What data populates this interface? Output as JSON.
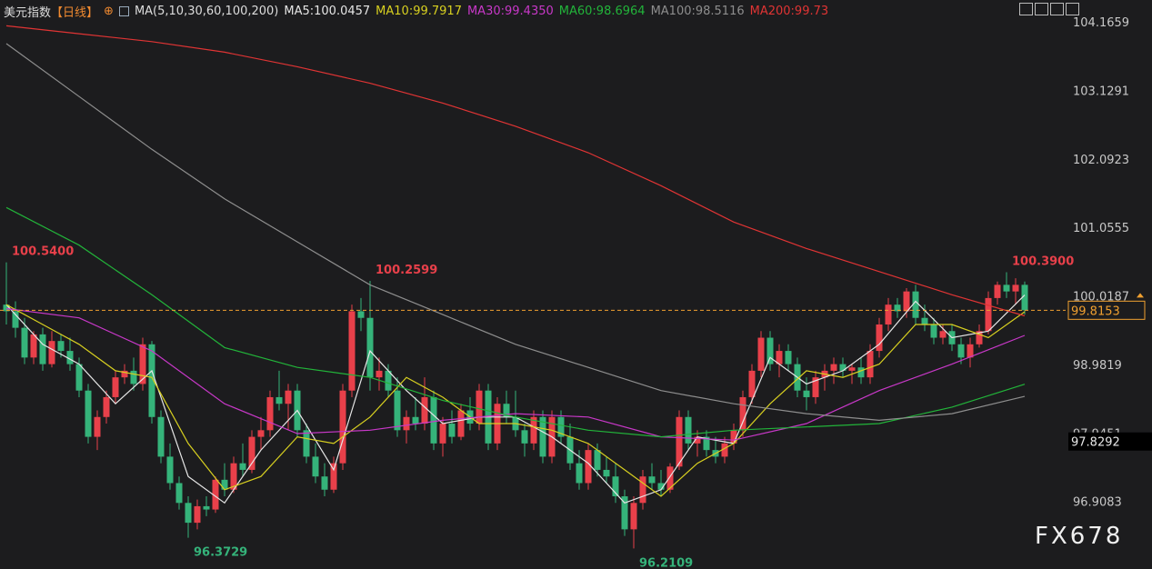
{
  "chart_data": {
    "type": "candlestick",
    "title": "美元指数",
    "period": "【日线】",
    "indicator": "MA(5,10,30,60,100,200)",
    "watermark": "FX678",
    "up_color": "#e8404a",
    "down_color": "#35b37a",
    "ylim": [
      95.9,
      104.51
    ],
    "yticks": [
      104.1659,
      103.1291,
      102.0923,
      101.0555,
      100.0187,
      98.9819,
      97.9451,
      96.9083
    ],
    "grid": false,
    "current_price": 99.8153,
    "current_color": "#f0a030",
    "marker_price": 97.8292,
    "candles": [
      [
        99.9,
        100.54,
        99.6,
        99.8
      ],
      [
        99.8,
        99.95,
        99.4,
        99.55
      ],
      [
        99.55,
        99.7,
        99.0,
        99.1
      ],
      [
        99.1,
        99.5,
        99.0,
        99.45
      ],
      [
        99.45,
        99.55,
        98.9,
        99.0
      ],
      [
        99.0,
        99.5,
        98.95,
        99.35
      ],
      [
        99.35,
        99.45,
        99.1,
        99.2
      ],
      [
        99.2,
        99.4,
        98.9,
        99.0
      ],
      [
        99.0,
        99.1,
        98.5,
        98.6
      ],
      [
        98.6,
        98.7,
        97.8,
        97.9
      ],
      [
        97.9,
        98.3,
        97.7,
        98.2
      ],
      [
        98.2,
        98.6,
        98.1,
        98.5
      ],
      [
        98.5,
        98.9,
        98.4,
        98.8
      ],
      [
        98.8,
        99.0,
        98.7,
        98.9
      ],
      [
        98.9,
        99.1,
        98.6,
        98.7
      ],
      [
        98.7,
        99.4,
        98.6,
        99.3
      ],
      [
        99.3,
        99.35,
        98.1,
        98.2
      ],
      [
        98.2,
        98.3,
        97.5,
        97.6
      ],
      [
        97.6,
        97.8,
        97.1,
        97.2
      ],
      [
        97.2,
        97.3,
        96.8,
        96.9
      ],
      [
        96.9,
        97.0,
        96.3729,
        96.6
      ],
      [
        96.6,
        96.95,
        96.5,
        96.85
      ],
      [
        96.85,
        97.0,
        96.7,
        96.8
      ],
      [
        96.8,
        97.3,
        96.75,
        97.25
      ],
      [
        97.25,
        97.5,
        97.0,
        97.1
      ],
      [
        97.1,
        97.6,
        97.05,
        97.5
      ],
      [
        97.5,
        97.8,
        97.3,
        97.4
      ],
      [
        97.4,
        98.0,
        97.35,
        97.9
      ],
      [
        97.9,
        98.2,
        97.7,
        98.0
      ],
      [
        98.0,
        98.6,
        97.9,
        98.5
      ],
      [
        98.5,
        98.9,
        98.3,
        98.4
      ],
      [
        98.4,
        98.7,
        98.0,
        98.6
      ],
      [
        98.6,
        98.7,
        97.9,
        98.0
      ],
      [
        98.0,
        98.1,
        97.5,
        97.6
      ],
      [
        97.6,
        97.8,
        97.2,
        97.3
      ],
      [
        97.3,
        97.5,
        97.0,
        97.1
      ],
      [
        97.1,
        97.6,
        97.05,
        97.5
      ],
      [
        97.5,
        98.7,
        97.4,
        98.6
      ],
      [
        98.6,
        99.9,
        98.5,
        99.8
      ],
      [
        99.8,
        100.0,
        99.5,
        99.7
      ],
      [
        99.7,
        100.2599,
        98.6,
        98.8
      ],
      [
        98.8,
        99.1,
        98.6,
        98.9
      ],
      [
        98.9,
        99.0,
        98.5,
        98.6
      ],
      [
        98.6,
        98.8,
        97.9,
        98.0
      ],
      [
        98.0,
        98.3,
        97.8,
        98.2
      ],
      [
        98.2,
        98.5,
        98.0,
        98.1
      ],
      [
        98.1,
        98.8,
        98.0,
        98.5
      ],
      [
        98.5,
        98.6,
        97.7,
        97.8
      ],
      [
        97.8,
        98.2,
        97.6,
        98.1
      ],
      [
        98.1,
        98.3,
        97.8,
        97.9
      ],
      [
        97.9,
        98.4,
        97.85,
        98.3
      ],
      [
        98.3,
        98.5,
        98.0,
        98.1
      ],
      [
        98.1,
        98.7,
        98.0,
        98.6
      ],
      [
        98.6,
        98.7,
        97.7,
        97.8
      ],
      [
        97.8,
        98.5,
        97.7,
        98.4
      ],
      [
        98.4,
        98.6,
        98.1,
        98.2
      ],
      [
        98.2,
        98.6,
        97.9,
        98.0
      ],
      [
        98.0,
        98.1,
        97.6,
        97.8
      ],
      [
        97.8,
        98.3,
        97.7,
        98.2
      ],
      [
        98.2,
        98.3,
        97.5,
        97.6
      ],
      [
        97.6,
        98.3,
        97.5,
        98.2
      ],
      [
        98.2,
        98.3,
        97.8,
        97.9
      ],
      [
        97.9,
        98.1,
        97.4,
        97.5
      ],
      [
        97.5,
        97.7,
        97.1,
        97.2
      ],
      [
        97.2,
        97.8,
        97.1,
        97.7
      ],
      [
        97.7,
        97.8,
        97.3,
        97.4
      ],
      [
        97.4,
        97.6,
        97.2,
        97.3
      ],
      [
        97.3,
        97.5,
        96.9,
        97.0
      ],
      [
        97.0,
        97.1,
        96.4,
        96.5
      ],
      [
        96.5,
        97.0,
        96.2109,
        96.9
      ],
      [
        96.9,
        97.4,
        96.8,
        97.3
      ],
      [
        97.3,
        97.5,
        97.1,
        97.2
      ],
      [
        97.2,
        97.4,
        97.0,
        97.1
      ],
      [
        97.1,
        97.5,
        97.05,
        97.45
      ],
      [
        97.45,
        98.3,
        97.4,
        98.2
      ],
      [
        98.2,
        98.3,
        97.7,
        97.8
      ],
      [
        97.8,
        98.0,
        97.6,
        97.9
      ],
      [
        97.9,
        98.0,
        97.6,
        97.7
      ],
      [
        97.7,
        97.9,
        97.5,
        97.6
      ],
      [
        97.6,
        97.9,
        97.5,
        97.8
      ],
      [
        97.8,
        98.1,
        97.7,
        98.0
      ],
      [
        98.0,
        98.6,
        97.9,
        98.5
      ],
      [
        98.5,
        99.0,
        98.4,
        98.9
      ],
      [
        98.9,
        99.5,
        98.8,
        99.4
      ],
      [
        99.4,
        99.5,
        98.9,
        99.0
      ],
      [
        99.0,
        99.3,
        98.8,
        99.2
      ],
      [
        99.2,
        99.3,
        98.9,
        99.0
      ],
      [
        99.0,
        99.1,
        98.5,
        98.6
      ],
      [
        98.6,
        98.8,
        98.3,
        98.5
      ],
      [
        98.5,
        98.9,
        98.4,
        98.8
      ],
      [
        98.8,
        99.0,
        98.6,
        98.9
      ],
      [
        98.9,
        99.1,
        98.7,
        99.0
      ],
      [
        99.0,
        99.1,
        98.8,
        98.9
      ],
      [
        98.9,
        99.0,
        98.7,
        98.95
      ],
      [
        98.95,
        99.1,
        98.7,
        98.8
      ],
      [
        98.8,
        99.3,
        98.7,
        99.2
      ],
      [
        99.2,
        99.7,
        99.1,
        99.6
      ],
      [
        99.6,
        100.0,
        99.5,
        99.9
      ],
      [
        99.9,
        100.0,
        99.7,
        99.8
      ],
      [
        99.8,
        100.15,
        99.7,
        100.1
      ],
      [
        100.1,
        100.2,
        99.6,
        99.7
      ],
      [
        99.7,
        99.9,
        99.5,
        99.6
      ],
      [
        99.6,
        99.7,
        99.3,
        99.4
      ],
      [
        99.4,
        99.6,
        99.3,
        99.5
      ],
      [
        99.5,
        99.6,
        99.2,
        99.3
      ],
      [
        99.3,
        99.4,
        99.0,
        99.1
      ],
      [
        99.1,
        99.4,
        98.95,
        99.3
      ],
      [
        99.3,
        99.6,
        99.25,
        99.5
      ],
      [
        99.5,
        100.1,
        99.45,
        100.0
      ],
      [
        100.0,
        100.25,
        99.9,
        100.2
      ],
      [
        100.2,
        100.39,
        100.0,
        100.1
      ],
      [
        100.1,
        100.3,
        99.9,
        100.2
      ],
      [
        100.2,
        100.25,
        99.75,
        99.8153
      ]
    ],
    "annotations": [
      {
        "index": 0,
        "kind": "high",
        "value": 100.54,
        "label": "100.5400"
      },
      {
        "index": 20,
        "kind": "low",
        "value": 96.3729,
        "label": "96.3729"
      },
      {
        "index": 40,
        "kind": "high",
        "value": 100.2599,
        "label": "100.2599"
      },
      {
        "index": 69,
        "kind": "low",
        "value": 96.2109,
        "label": "96.2109"
      },
      {
        "index": 110,
        "kind": "high",
        "value": 100.39,
        "label": "100.3900"
      }
    ],
    "series": [
      {
        "name": "MA5:100.0457",
        "color": "#e6e6e6",
        "x": [
          0,
          4,
          8,
          12,
          16,
          20,
          24,
          28,
          32,
          36,
          40,
          44,
          48,
          52,
          56,
          60,
          64,
          68,
          72,
          76,
          80,
          84,
          88,
          92,
          96,
          100,
          104,
          108,
          112
        ],
        "values": [
          99.9,
          99.3,
          99.0,
          98.4,
          98.9,
          97.3,
          96.9,
          97.7,
          98.3,
          97.4,
          99.2,
          98.6,
          98.1,
          98.2,
          98.2,
          97.9,
          97.5,
          96.9,
          97.1,
          97.9,
          97.8,
          99.1,
          98.7,
          98.9,
          99.3,
          99.95,
          99.4,
          99.5,
          100.0457
        ]
      },
      {
        "name": "MA10:99.7917",
        "color": "#d8d020",
        "x": [
          0,
          4,
          8,
          12,
          16,
          20,
          24,
          28,
          32,
          36,
          40,
          44,
          48,
          52,
          56,
          60,
          64,
          68,
          72,
          76,
          80,
          84,
          88,
          92,
          96,
          100,
          104,
          108,
          112
        ],
        "values": [
          99.9,
          99.6,
          99.3,
          98.9,
          98.8,
          97.8,
          97.1,
          97.3,
          97.9,
          97.8,
          98.2,
          98.8,
          98.5,
          98.1,
          98.1,
          98.0,
          97.8,
          97.4,
          97.0,
          97.5,
          97.8,
          98.4,
          98.9,
          98.8,
          99.0,
          99.6,
          99.6,
          99.4,
          99.7917
        ]
      },
      {
        "name": "MA30:99.4350",
        "color": "#c838c8",
        "x": [
          0,
          8,
          16,
          24,
          32,
          40,
          48,
          56,
          64,
          72,
          80,
          88,
          96,
          104,
          112
        ],
        "values": [
          99.84,
          99.7,
          99.2,
          98.4,
          97.95,
          98.0,
          98.15,
          98.25,
          98.2,
          97.9,
          97.85,
          98.1,
          98.6,
          99.0,
          99.435
        ]
      },
      {
        "name": "MA60:98.6964",
        "color": "#22b43a",
        "x": [
          0,
          8,
          16,
          24,
          32,
          40,
          48,
          56,
          64,
          72,
          80,
          88,
          96,
          104,
          112
        ],
        "values": [
          101.37,
          100.8,
          100.05,
          99.25,
          98.95,
          98.8,
          98.45,
          98.2,
          98.0,
          97.9,
          98.0,
          98.05,
          98.1,
          98.35,
          98.6964
        ]
      },
      {
        "name": "MA100:98.5116",
        "color": "#8e8e8e",
        "x": [
          0,
          8,
          16,
          24,
          32,
          40,
          48,
          56,
          64,
          72,
          80,
          88,
          96,
          104,
          112
        ],
        "values": [
          103.85,
          103.05,
          102.25,
          101.5,
          100.85,
          100.2,
          99.75,
          99.3,
          98.95,
          98.6,
          98.4,
          98.25,
          98.15,
          98.25,
          98.5116
        ]
      },
      {
        "name": "MA200:99.73",
        "color": "#e03434",
        "x": [
          0,
          8,
          16,
          24,
          32,
          40,
          48,
          56,
          64,
          72,
          80,
          88,
          96,
          104,
          112
        ],
        "values": [
          104.12,
          104.0,
          103.88,
          103.72,
          103.5,
          103.25,
          102.95,
          102.6,
          102.2,
          101.7,
          101.15,
          100.75,
          100.4,
          100.05,
          99.73
        ]
      }
    ]
  }
}
